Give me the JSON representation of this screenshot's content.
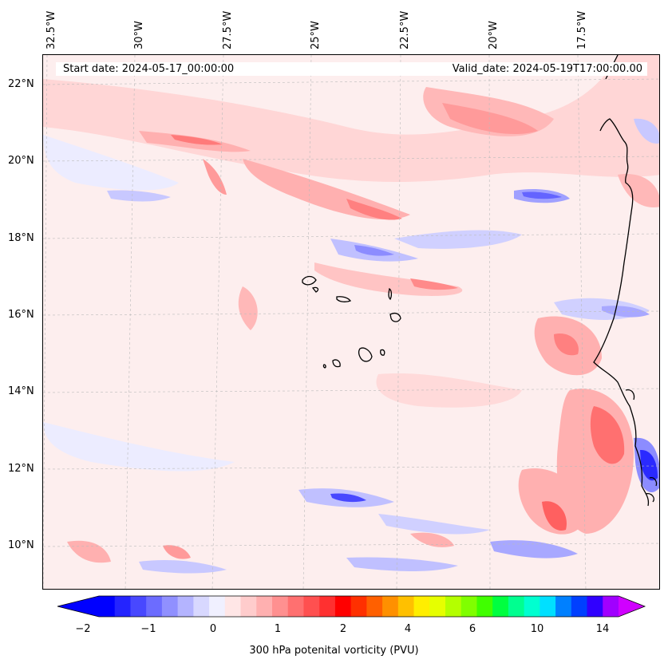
{
  "map": {
    "start_date": "Start date: 2024-05-17_00:00:00",
    "valid_date": "Valid_date: 2024-05-19T17:00:00.00",
    "longitude_labels": [
      "32.5°W",
      "30°W",
      "27.5°W",
      "25°W",
      "22.5°W",
      "20°W",
      "17.5°W"
    ],
    "latitude_labels": [
      "22°N",
      "20°N",
      "18°N",
      "16°N",
      "14°N",
      "12°N",
      "10°N"
    ],
    "colors": {
      "background_field": "#fdeeee",
      "coast": "#000000",
      "grid": "#bbbbbb"
    }
  },
  "colorbar": {
    "label": "300 hPa potenital vorticity (PVU)",
    "tick_labels": [
      "−2",
      "−1",
      "0",
      "1",
      "2",
      "4",
      "6",
      "10",
      "14"
    ],
    "colors": [
      "#0000ff",
      "#2424ff",
      "#4848ff",
      "#6c6cff",
      "#9090ff",
      "#b4b4ff",
      "#d8d8ff",
      "#f0f0ff",
      "#ffe6e6",
      "#ffcccc",
      "#ffb0b0",
      "#ff9090",
      "#ff7070",
      "#ff5050",
      "#ff3030",
      "#ff0000",
      "#ff3000",
      "#ff6000",
      "#ff9000",
      "#ffc000",
      "#ffee00",
      "#e6ff00",
      "#b4ff00",
      "#80ff00",
      "#40ff00",
      "#00ff40",
      "#00ff90",
      "#00ffd0",
      "#00e0ff",
      "#0080ff",
      "#0040ff",
      "#3000ff",
      "#a000ff"
    ],
    "over_color": "#d000ff",
    "under_color": "#0000ff"
  }
}
